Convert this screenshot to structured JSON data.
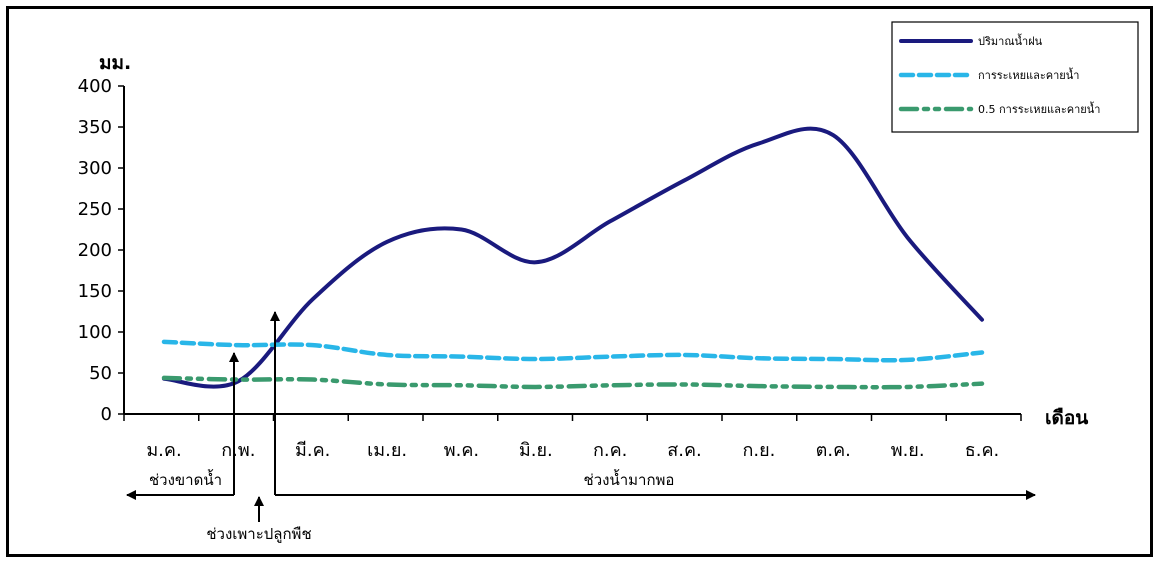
{
  "chart_data": {
    "type": "line",
    "ylabel": "มม.",
    "xlabel": "เดือน",
    "ylim": [
      0,
      400
    ],
    "yticks": [
      0,
      50,
      100,
      150,
      200,
      250,
      300,
      350,
      400
    ],
    "categories": [
      "ม.ค.",
      "ก.พ.",
      "มี.ค.",
      "เม.ย.",
      "พ.ค.",
      "มิ.ย.",
      "ก.ค.",
      "ส.ค.",
      "ก.ย.",
      "ต.ค.",
      "พ.ย.",
      "ธ.ค."
    ],
    "series": [
      {
        "name": "ปริมาณน้ำฝน",
        "values": [
          43,
          40,
          140,
          210,
          225,
          185,
          235,
          285,
          330,
          340,
          215,
          115
        ],
        "color": "#1a1a7e",
        "style": "solid"
      },
      {
        "name": "การระเหยและคายน้ำ",
        "values": [
          88,
          84,
          84,
          72,
          70,
          67,
          70,
          72,
          68,
          67,
          66,
          75
        ],
        "color": "#29b6e8",
        "style": "dashed"
      },
      {
        "name": "0.5 การระเหยและคายน้ำ",
        "values": [
          44,
          42,
          42,
          36,
          35,
          33,
          35,
          36,
          34,
          33,
          33,
          37
        ],
        "color": "#3a9a6e",
        "style": "dashdot"
      }
    ],
    "legend_position": "top-right",
    "grid": false,
    "annotations": {
      "dry_period": "ช่วงขาดน้ำ",
      "wet_period": "ช่วงน้ำมากพอ",
      "planting_period": "ช่วงเพาะปลูกพืช"
    }
  }
}
